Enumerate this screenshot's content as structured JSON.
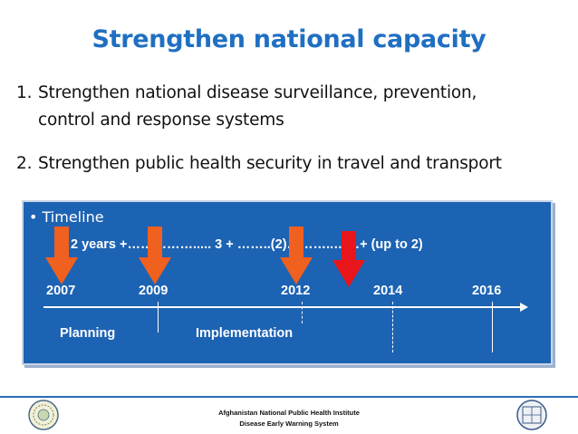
{
  "slide": {
    "title": "Strengthen national  capacity",
    "points": [
      {
        "num": "1.",
        "line1": "Strengthen national disease surveillance, prevention,",
        "line2": "control and response systems"
      },
      {
        "num": "2.",
        "line1": "Strengthen public health security in travel and transport"
      }
    ]
  },
  "timeline": {
    "bullet": "• Timeline",
    "summary": "2 years +……………..... 3 + ……..(2)………..……+ (up to 2)",
    "years": [
      "2007",
      "2009",
      "2012",
      "2014",
      "2016"
    ],
    "phases": [
      "Planning",
      "Implementation"
    ],
    "colors": {
      "panel": "#1d63b3",
      "orange_arrow": "#f0601e",
      "red_arrow": "#e8151b"
    }
  },
  "footer": {
    "line1": "Afghanistan National Public Health Institute",
    "line2": "Disease Early Warning System"
  }
}
